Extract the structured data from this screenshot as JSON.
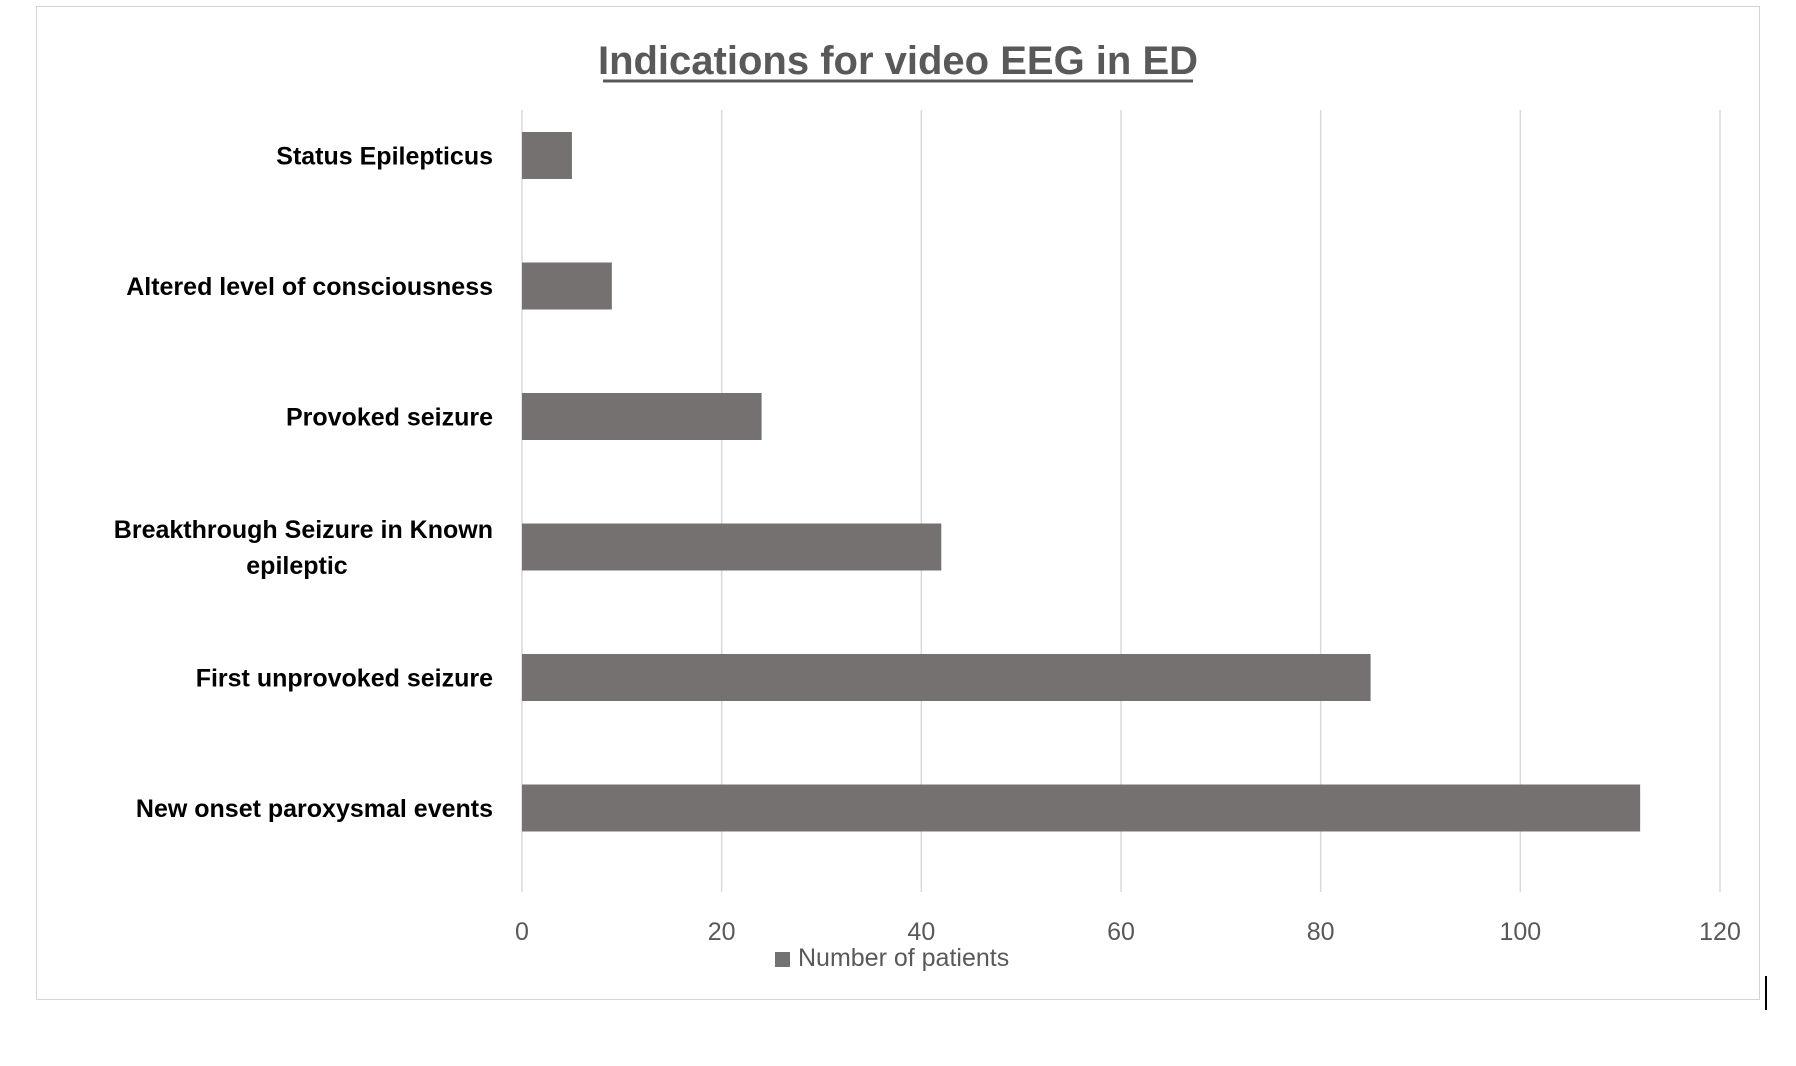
{
  "chart_data": {
    "type": "bar",
    "orientation": "horizontal",
    "title": "Indications for video EEG in ED",
    "categories": [
      "Status Epilepticus",
      "Altered level of consciousness",
      "Provoked seizure",
      "Breakthrough Seizure in Known epileptic",
      "First unprovoked seizure",
      "New onset paroxysmal events"
    ],
    "series": [
      {
        "name": "Number of patients",
        "values": [
          5,
          9,
          24,
          42,
          85,
          112
        ],
        "color": "#757171"
      }
    ],
    "xlim": [
      0,
      120
    ],
    "x_ticks": [
      "0",
      "20",
      "40",
      "60",
      "80",
      "100",
      "120"
    ],
    "xlabel": "",
    "ylabel": "",
    "grid": "vertical",
    "legend_position": "bottom"
  }
}
